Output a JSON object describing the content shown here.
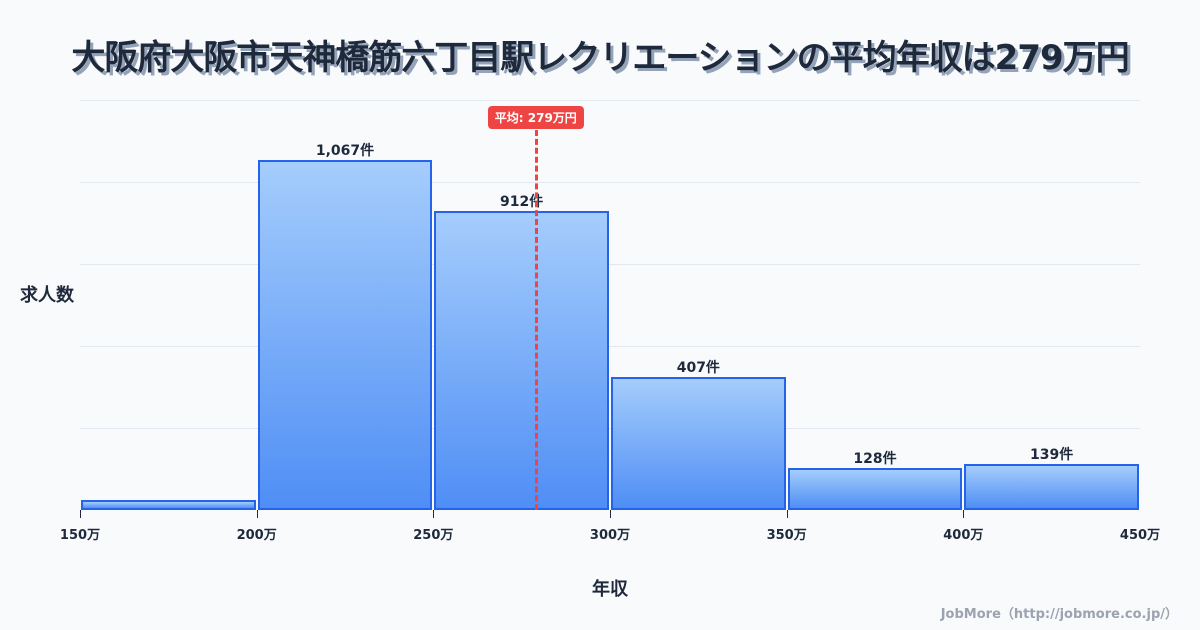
{
  "title": "大阪府大阪市天神橋筋六丁目駅レクリエーションの平均年収は279万円",
  "average_badge": "平均: 279万円",
  "y_axis_label": "求人数",
  "x_axis_label": "年収",
  "credit": "JobMore（http://jobmore.co.jp/）",
  "colors": {
    "bar_fill_top": "#a5cdfc",
    "bar_fill_bottom": "#4f8ef5",
    "bar_border": "#2563eb",
    "average_line": "#ef4444",
    "title_text": "#1e293b",
    "background": "#f8fafc"
  },
  "ticks": [
    "150万",
    "200万",
    "250万",
    "300万",
    "350万",
    "400万",
    "450万"
  ],
  "bars": [
    {
      "range": "150万-200万",
      "count": 30,
      "label": ""
    },
    {
      "range": "200万-250万",
      "count": 1067,
      "label": "1,067件"
    },
    {
      "range": "250万-300万",
      "count": 912,
      "label": "912件"
    },
    {
      "range": "300万-350万",
      "count": 407,
      "label": "407件"
    },
    {
      "range": "350万-400万",
      "count": 128,
      "label": "128件"
    },
    {
      "range": "400万-450万",
      "count": 139,
      "label": "139件"
    }
  ],
  "chart_data": {
    "type": "bar",
    "title": "大阪府大阪市天神橋筋六丁目駅レクリエーションの平均年収は279万円",
    "xlabel": "年収",
    "ylabel": "求人数",
    "categories": [
      "150万-200万",
      "200万-250万",
      "250万-300万",
      "300万-350万",
      "350万-400万",
      "400万-450万"
    ],
    "values": [
      30,
      1067,
      912,
      407,
      128,
      139
    ],
    "x_ticks": [
      "150万",
      "200万",
      "250万",
      "300万",
      "350万",
      "400万",
      "450万"
    ],
    "ylim": [
      0,
      1250
    ],
    "grid": true,
    "legend": null,
    "annotations": [
      {
        "type": "vline",
        "x": 279,
        "label": "平均: 279万円",
        "color": "#ef4444",
        "style": "dashed"
      }
    ],
    "data_labels": [
      "",
      "1,067件",
      "912件",
      "407件",
      "128件",
      "139件"
    ]
  }
}
